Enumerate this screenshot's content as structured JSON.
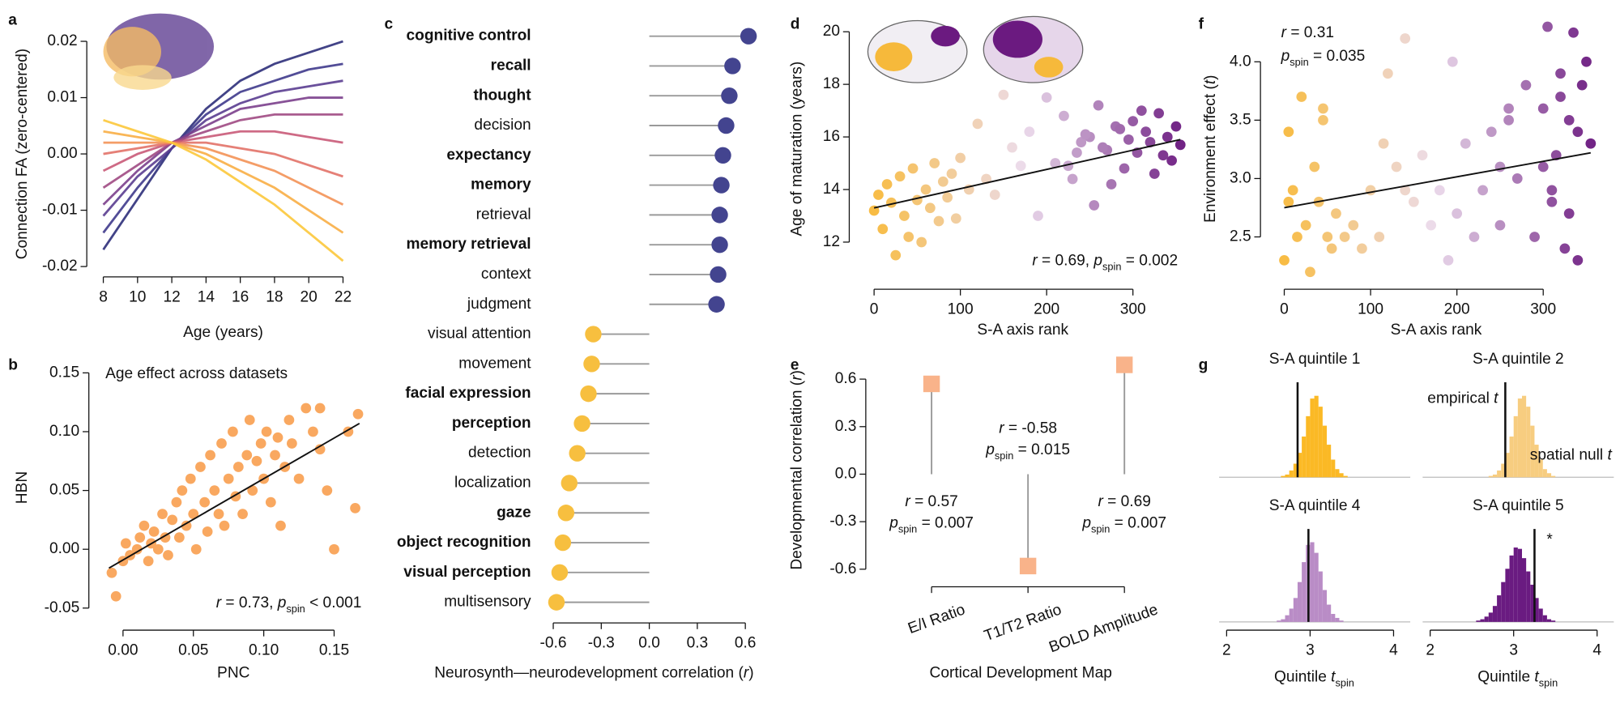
{
  "chart_data": [
    {
      "panel": "a",
      "type": "line",
      "xlabel": "Age (years)",
      "ylabel": "Connection FA (zero-centered)",
      "x": [
        8,
        10,
        12,
        14,
        16,
        18,
        20,
        22
      ],
      "xlim": [
        8,
        22
      ],
      "xticks": [
        8,
        10,
        12,
        14,
        16,
        18,
        20,
        22
      ],
      "ylim": [
        -0.02,
        0.02
      ],
      "yticks": [
        -0.02,
        -0.01,
        {
          "value": 0,
          "label": "0.00"
        },
        0.01,
        0.02
      ],
      "series": [
        {
          "color": "#2e2f7a",
          "values": [
            -0.017,
            -0.008,
            0.001,
            0.008,
            0.013,
            0.016,
            0.018,
            0.02
          ]
        },
        {
          "color": "#3f3a8c",
          "values": [
            -0.014,
            -0.006,
            0.001,
            0.007,
            0.011,
            0.013,
            0.015,
            0.016
          ]
        },
        {
          "color": "#5a3d90",
          "values": [
            -0.011,
            -0.004,
            0.001,
            0.006,
            0.009,
            0.011,
            0.012,
            0.013
          ]
        },
        {
          "color": "#7b3f8c",
          "values": [
            -0.009,
            -0.003,
            0.002,
            0.005,
            0.008,
            0.009,
            0.01,
            0.01
          ]
        },
        {
          "color": "#a04a83",
          "values": [
            -0.006,
            -0.002,
            0.002,
            0.004,
            0.006,
            0.007,
            0.007,
            0.007
          ]
        },
        {
          "color": "#c95a78",
          "values": [
            -0.003,
            0.0,
            0.002,
            0.003,
            0.004,
            0.004,
            0.003,
            0.002
          ]
        },
        {
          "color": "#e27268",
          "values": [
            0.0,
            0.001,
            0.002,
            0.002,
            0.001,
            0.0,
            -0.002,
            -0.004
          ]
        },
        {
          "color": "#f39257",
          "values": [
            0.002,
            0.002,
            0.002,
            0.001,
            -0.001,
            -0.003,
            -0.006,
            -0.009
          ]
        },
        {
          "color": "#f8ae45",
          "values": [
            0.004,
            0.003,
            0.002,
            0.0,
            -0.003,
            -0.006,
            -0.01,
            -0.014
          ]
        },
        {
          "color": "#fcc83b",
          "values": [
            0.006,
            0.004,
            0.002,
            -0.001,
            -0.005,
            -0.009,
            -0.014,
            -0.019
          ]
        }
      ]
    },
    {
      "panel": "b",
      "type": "scatter",
      "title": "Age effect across datasets",
      "xlabel": "PNC",
      "ylabel": "HBN",
      "color": "#f9a860",
      "x": [
        0.0,
        -0.005,
        0.002,
        0.005,
        0.01,
        0.012,
        0.015,
        0.018,
        0.02,
        0.022,
        0.025,
        0.028,
        0.03,
        0.032,
        0.035,
        0.038,
        0.04,
        0.042,
        0.045,
        0.048,
        0.05,
        0.052,
        0.055,
        0.058,
        0.06,
        0.062,
        0.065,
        0.068,
        0.07,
        0.072,
        0.075,
        0.078,
        0.08,
        0.082,
        0.085,
        0.088,
        0.09,
        0.092,
        0.095,
        0.098,
        0.1,
        0.102,
        0.105,
        0.108,
        0.11,
        0.112,
        0.115,
        0.118,
        0.12,
        0.125,
        0.13,
        0.135,
        0.14,
        0.14,
        0.145,
        0.15,
        0.16,
        0.165,
        0.167,
        -0.008
      ],
      "values": [
        -0.01,
        -0.04,
        0.005,
        -0.005,
        0.0,
        0.01,
        0.02,
        -0.01,
        0.005,
        0.015,
        0.0,
        0.03,
        0.01,
        -0.005,
        0.025,
        0.04,
        0.01,
        0.05,
        0.02,
        0.06,
        0.03,
        0.0,
        0.07,
        0.04,
        0.015,
        0.08,
        0.05,
        0.03,
        0.09,
        0.02,
        0.06,
        0.1,
        0.045,
        0.07,
        0.03,
        0.08,
        0.11,
        0.05,
        0.075,
        0.09,
        0.06,
        0.1,
        0.04,
        0.08,
        0.095,
        0.02,
        0.07,
        0.11,
        0.09,
        0.06,
        0.12,
        0.1,
        0.085,
        0.12,
        0.05,
        0.0,
        0.1,
        0.035,
        0.115,
        -0.02
      ],
      "fit": {
        "x": [
          -0.01,
          0.168
        ],
        "y": [
          -0.016,
          0.107
        ]
      },
      "xlim": [
        -0.014,
        0.171
      ],
      "xticks": [
        {
          "value": 0,
          "label": "0.00"
        },
        0.05,
        {
          "value": 0.1,
          "label": "0.10"
        },
        0.15
      ],
      "ylim": [
        -0.06,
        0.164
      ],
      "yticks": [
        -0.05,
        {
          "value": 0,
          "label": "0.00"
        },
        0.05,
        {
          "value": 0.1,
          "label": "0.10"
        },
        0.15
      ],
      "annotations": [
        [
          {
            "t": "r",
            "style": "i"
          },
          {
            "t": " = 0.73, "
          },
          {
            "t": "p",
            "style": "i"
          },
          {
            "t": "spin",
            "style": "sub"
          },
          {
            "t": " < 0.001"
          }
        ]
      ]
    },
    {
      "panel": "c",
      "type": "lollipop",
      "orientation": "horizontal",
      "categories": [
        "cognitive control",
        "recall",
        "thought",
        "decision",
        "expectancy",
        "memory",
        "retrieval",
        "memory retrieval",
        "context",
        "judgment",
        "visual attention",
        "movement",
        "facial expression",
        "perception",
        "detection",
        "localization",
        "gaze",
        "object recognition",
        "visual perception",
        "multisensory"
      ],
      "values": [
        0.62,
        0.52,
        0.5,
        0.48,
        0.46,
        0.45,
        0.44,
        0.44,
        0.43,
        0.42,
        -0.35,
        -0.36,
        -0.38,
        -0.42,
        -0.45,
        -0.5,
        -0.52,
        -0.54,
        -0.56,
        -0.58
      ],
      "bold": [
        true,
        true,
        true,
        false,
        true,
        true,
        false,
        true,
        false,
        false,
        false,
        false,
        true,
        true,
        false,
        false,
        true,
        true,
        true,
        false
      ],
      "color_positive": "#43448f",
      "color_negative": "#f7bf3f",
      "stem_color": "#9a9a9a",
      "xlim": [
        -0.7,
        0.72
      ],
      "xticks": [
        -0.6,
        -0.3,
        {
          "value": 0,
          "label": "0.0"
        },
        0.3,
        0.6
      ],
      "xlabel": [
        {
          "t": "Neurosynth—neurodevelopment correlation ("
        },
        {
          "t": "r",
          "style": "i"
        },
        {
          "t": ")"
        }
      ]
    },
    {
      "panel": "d",
      "type": "scatter",
      "xlabel": "S-A axis rank",
      "ylabel": "Age of maturation (years)",
      "color_scale": [
        "#f9b934",
        "#ecdcec",
        "#6b1a80"
      ],
      "x": [
        0,
        5,
        10,
        15,
        20,
        25,
        30,
        35,
        40,
        45,
        50,
        55,
        60,
        65,
        70,
        75,
        80,
        85,
        90,
        95,
        100,
        110,
        120,
        130,
        140,
        150,
        160,
        170,
        180,
        190,
        200,
        210,
        220,
        230,
        240,
        250,
        260,
        270,
        280,
        290,
        300,
        305,
        310,
        315,
        320,
        325,
        330,
        335,
        340,
        345,
        350,
        355,
        295,
        285,
        275,
        265,
        255,
        245,
        235,
        225
      ],
      "values": [
        13.2,
        13.8,
        12.5,
        14.2,
        13.5,
        11.5,
        14.5,
        13.0,
        12.2,
        14.8,
        13.6,
        12.0,
        14.0,
        13.3,
        15.0,
        12.8,
        14.3,
        13.7,
        14.6,
        12.9,
        15.2,
        14.0,
        16.5,
        14.4,
        13.8,
        17.6,
        15.6,
        14.9,
        16.2,
        13.0,
        17.5,
        15.0,
        16.8,
        14.4,
        15.8,
        16.0,
        17.2,
        15.5,
        16.4,
        14.8,
        16.6,
        15.4,
        17.0,
        16.2,
        15.8,
        14.6,
        16.9,
        15.3,
        16.0,
        15.1,
        16.4,
        15.7,
        15.9,
        16.3,
        14.2,
        15.6,
        13.4,
        16.1,
        15.4,
        14.9
      ],
      "fit": {
        "x": [
          0,
          355
        ],
        "y": [
          13.3,
          15.9
        ]
      },
      "xlim": [
        -16.8,
        364
      ],
      "xticks": [
        0,
        100,
        200,
        300
      ],
      "ylim": [
        10.6,
        20.5
      ],
      "yticks": [
        12,
        14,
        16,
        18,
        20
      ],
      "annotations": [
        [
          {
            "t": "r",
            "style": "i"
          },
          {
            "t": " = 0.69, "
          },
          {
            "t": "p",
            "style": "i"
          },
          {
            "t": "spin",
            "style": "sub"
          },
          {
            "t": " = 0.002"
          }
        ]
      ]
    },
    {
      "panel": "e",
      "type": "lollipop",
      "orientation": "vertical",
      "marker": "square",
      "color": "#f9b38a",
      "stem_color": "#9a9a9a",
      "categories": [
        "E/I Ratio",
        "T1/T2 Ratio",
        "BOLD Amplitude"
      ],
      "values": [
        0.57,
        -0.58,
        0.69
      ],
      "ylim": [
        -0.724,
        0.776
      ],
      "yticks": [
        -0.6,
        -0.3,
        {
          "value": 0,
          "label": "0.0"
        },
        0.3,
        0.6
      ],
      "xlabel": "Cortical Development Map",
      "ylabel": [
        {
          "t": "Developmental correlation ("
        },
        {
          "t": "r",
          "style": "i"
        },
        {
          "t": ")"
        }
      ],
      "annotations": [
        [
          [
            {
              "t": "r",
              "style": "i"
            },
            {
              "t": " = 0.57"
            }
          ],
          [
            {
              "t": "p",
              "style": "i"
            },
            {
              "t": "spin",
              "style": "sub"
            },
            {
              "t": " = 0.007"
            }
          ]
        ],
        [
          [
            {
              "t": "r",
              "style": "i"
            },
            {
              "t": " = -0.58"
            }
          ],
          [
            {
              "t": "p",
              "style": "i"
            },
            {
              "t": "spin",
              "style": "sub"
            },
            {
              "t": " = 0.015"
            }
          ]
        ],
        [
          [
            {
              "t": "r",
              "style": "i"
            },
            {
              "t": " = 0.69"
            }
          ],
          [
            {
              "t": "p",
              "style": "i"
            },
            {
              "t": "spin",
              "style": "sub"
            },
            {
              "t": " = 0.007"
            }
          ]
        ]
      ]
    },
    {
      "panel": "f",
      "type": "scatter",
      "xlabel": "S-A axis rank",
      "ylabel": [
        {
          "t": "Environment effect ("
        },
        {
          "t": "t",
          "style": "i"
        },
        {
          "t": ")"
        }
      ],
      "color_scale": [
        "#f9b934",
        "#ecdcec",
        "#6b1a80"
      ],
      "x": [
        0,
        5,
        10,
        15,
        20,
        25,
        30,
        35,
        40,
        45,
        50,
        55,
        60,
        70,
        80,
        90,
        100,
        110,
        120,
        130,
        140,
        150,
        160,
        170,
        180,
        190,
        200,
        210,
        220,
        230,
        240,
        250,
        260,
        270,
        280,
        290,
        300,
        305,
        310,
        315,
        320,
        325,
        330,
        335,
        340,
        345,
        350,
        355,
        300,
        310,
        320,
        330,
        340,
        5,
        45,
        115,
        140,
        195,
        250,
        260
      ],
      "values": [
        2.3,
        3.4,
        2.9,
        2.5,
        3.7,
        2.6,
        2.2,
        3.1,
        2.8,
        3.6,
        2.5,
        2.4,
        2.7,
        2.5,
        2.6,
        2.4,
        2.9,
        2.5,
        3.9,
        3.1,
        4.2,
        2.8,
        3.2,
        2.6,
        2.9,
        2.3,
        2.7,
        3.3,
        2.5,
        2.9,
        3.4,
        2.6,
        3.5,
        3.0,
        3.8,
        2.5,
        3.6,
        4.3,
        2.8,
        3.2,
        3.9,
        2.4,
        3.5,
        4.25,
        2.3,
        3.8,
        4.0,
        3.3,
        3.1,
        2.9,
        3.7,
        2.7,
        3.4,
        2.8,
        3.5,
        3.3,
        2.9,
        4.0,
        3.1,
        3.6
      ],
      "fit": {
        "x": [
          0,
          355
        ],
        "y": [
          2.75,
          3.22
        ]
      },
      "xlim": [
        -18,
        365
      ],
      "xticks": [
        0,
        100,
        200,
        300
      ],
      "ylim": [
        2.14,
        4.37
      ],
      "yticks": [
        2.5,
        {
          "value": 3,
          "label": "3.0"
        },
        3.5,
        {
          "value": 4,
          "label": "4.0"
        }
      ],
      "annotations": [
        [
          {
            "t": "r",
            "style": "i"
          },
          {
            "t": " = 0.31"
          }
        ],
        [
          {
            "t": "p",
            "style": "i"
          },
          {
            "t": "spin",
            "style": "sub"
          },
          {
            "t": " = 0.035"
          }
        ]
      ]
    },
    {
      "panel": "g",
      "type": "histogram",
      "title": "S-A quintile 1",
      "color": "#fbb925",
      "marker_value": 2.85,
      "bins": [
        2.5,
        2.55,
        2.6,
        2.65,
        2.7,
        2.75,
        2.8,
        2.85,
        2.9,
        2.95,
        3.0,
        3.05,
        3.1,
        3.15,
        3.2,
        3.25,
        3.3,
        3.35,
        3.4,
        3.45,
        3.5,
        3.55,
        3.6
      ],
      "values": [
        0,
        0,
        0,
        1,
        2,
        5,
        10,
        18,
        30,
        45,
        58,
        60,
        52,
        38,
        24,
        13,
        6,
        3,
        1,
        0,
        0,
        0
      ],
      "xlim": [
        1.91,
        4.2
      ],
      "ylim": [
        0,
        70
      ]
    },
    {
      "type": "histogram",
      "title": "S-A quintile 2",
      "color": "#f7cd80",
      "marker_value": 2.9,
      "bins": [
        2.5,
        2.55,
        2.6,
        2.65,
        2.7,
        2.75,
        2.8,
        2.85,
        2.9,
        2.95,
        3.0,
        3.05,
        3.1,
        3.15,
        3.2,
        3.25,
        3.3,
        3.35,
        3.4,
        3.45,
        3.5,
        3.55,
        3.6
      ],
      "values": [
        0,
        0,
        0,
        0,
        1,
        2,
        5,
        10,
        18,
        30,
        45,
        58,
        60,
        52,
        38,
        24,
        13,
        6,
        3,
        1,
        0,
        0
      ],
      "xlim": [
        1.91,
        4.2
      ],
      "ylim": [
        0,
        70
      ],
      "annotations": [
        [
          {
            "t": "empirical "
          },
          {
            "t": "t",
            "style": "i"
          }
        ],
        [
          {
            "t": "spatial null "
          },
          {
            "t": "t",
            "style": "i"
          }
        ]
      ]
    },
    {
      "type": "histogram",
      "title": "S-A quintile 4",
      "color": "#b98cc6",
      "marker_value": 2.98,
      "bins": [
        2.5,
        2.55,
        2.6,
        2.65,
        2.7,
        2.75,
        2.8,
        2.85,
        2.9,
        2.95,
        3.0,
        3.05,
        3.1,
        3.15,
        3.2,
        3.25,
        3.3,
        3.35,
        3.4,
        3.45,
        3.5,
        3.55,
        3.6
      ],
      "values": [
        0,
        0,
        1,
        2,
        5,
        10,
        18,
        30,
        45,
        58,
        60,
        52,
        38,
        24,
        13,
        6,
        3,
        1,
        0,
        0,
        0,
        0
      ],
      "xlim": [
        1.91,
        4.2
      ],
      "ylim": [
        0,
        70
      ],
      "xticks": [
        2,
        3,
        4
      ],
      "xlabel": [
        {
          "t": "Quintile "
        },
        {
          "t": "t",
          "style": "i"
        },
        {
          "t": "spin",
          "style": "sub"
        }
      ]
    },
    {
      "type": "histogram",
      "title": "S-A quintile 5",
      "color": "#6a1b81",
      "marker_value": 3.25,
      "bins": [
        2.5,
        2.55,
        2.6,
        2.65,
        2.7,
        2.75,
        2.8,
        2.85,
        2.9,
        2.95,
        3.0,
        3.05,
        3.1,
        3.15,
        3.2,
        3.25,
        3.3,
        3.35,
        3.4,
        3.45,
        3.5,
        3.55,
        3.6
      ],
      "values": [
        0,
        1,
        2,
        4,
        7,
        12,
        20,
        30,
        40,
        50,
        56,
        55,
        48,
        38,
        28,
        18,
        10,
        5,
        2,
        1,
        0,
        0
      ],
      "xlim": [
        1.91,
        4.2
      ],
      "ylim": [
        0,
        70
      ],
      "xticks": [
        2,
        3,
        4
      ],
      "xlabel": [
        {
          "t": "Quintile "
        },
        {
          "t": "t",
          "style": "i"
        },
        {
          "t": "spin",
          "style": "sub"
        }
      ],
      "annotations": [
        [
          {
            "t": "*"
          }
        ]
      ]
    }
  ]
}
